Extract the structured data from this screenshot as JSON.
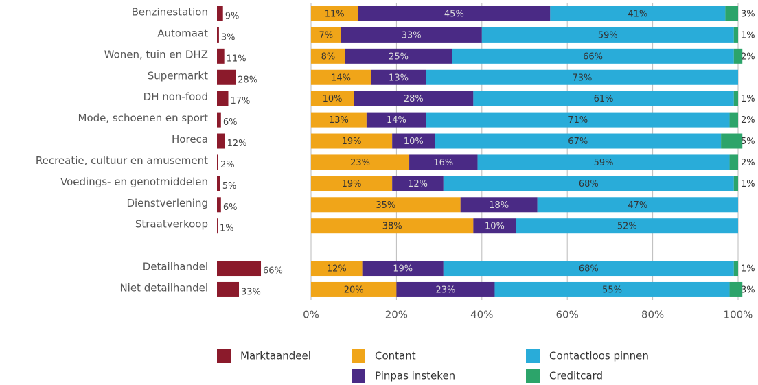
{
  "chart_data": [
    {
      "type": "bar",
      "categories": [
        "Benzinestation",
        "Automaat",
        "Wonen, tuin en DHZ",
        "Supermarkt",
        "DH non-food",
        "Mode, schoenen en sport",
        "Horeca",
        "Recreatie, cultuur en amusement",
        "Voedings- en genotmiddelen",
        "Dienstverlening",
        "Straatverkoop",
        null,
        "Detailhandel",
        "Niet detailhandel"
      ],
      "series": [
        {
          "name": "Marktaandeel",
          "color": "#8b1a2b",
          "values": [
            9,
            3,
            11,
            28,
            17,
            6,
            12,
            2,
            5,
            6,
            1,
            null,
            66,
            33
          ],
          "value_labels": [
            "9%",
            "3%",
            "11%",
            "28%",
            "17%",
            "6%",
            "12%",
            "2%",
            "5%",
            "6%",
            "1%",
            null,
            "66%",
            "33%"
          ]
        }
      ]
    },
    {
      "type": "stacked_bar",
      "xlim": [
        0,
        100
      ],
      "xticks": [
        {
          "value": 0,
          "label": "0%"
        },
        {
          "value": 20,
          "label": "20%"
        },
        {
          "value": 40,
          "label": "40%"
        },
        {
          "value": 60,
          "label": "60%"
        },
        {
          "value": 80,
          "label": "80%"
        },
        {
          "value": 100,
          "label": "100%"
        }
      ],
      "grid": true,
      "series": [
        {
          "name": "Contant",
          "color": "#f0a519",
          "values": [
            11,
            7,
            8,
            14,
            10,
            13,
            19,
            23,
            19,
            35,
            38,
            null,
            12,
            20
          ],
          "value_labels": [
            "11%",
            "7%",
            "8%",
            "14%",
            "10%",
            "13%",
            "19%",
            "23%",
            "19%",
            "35%",
            "38%",
            null,
            "12%",
            "20%"
          ]
        },
        {
          "name": "Pinpas insteken",
          "color": "#4a2a85",
          "values": [
            45,
            33,
            25,
            13,
            28,
            14,
            10,
            16,
            12,
            18,
            10,
            null,
            19,
            23
          ],
          "value_labels": [
            "45%",
            "33%",
            "25%",
            "13%",
            "28%",
            "14%",
            "10%",
            "16%",
            "12%",
            "18%",
            "10%",
            null,
            "19%",
            "23%"
          ]
        },
        {
          "name": "Contactloos pinnen",
          "color": "#29acd9",
          "values": [
            41,
            59,
            66,
            73,
            61,
            71,
            67,
            59,
            68,
            47,
            52,
            null,
            68,
            55
          ],
          "value_labels": [
            "41%",
            "59%",
            "66%",
            "73%",
            "61%",
            "71%",
            "67%",
            "59%",
            "68%",
            "47%",
            "52%",
            null,
            "68%",
            "55%"
          ]
        },
        {
          "name": "Creditcard",
          "color": "#2ca46a",
          "values": [
            3,
            1,
            2,
            null,
            1,
            2,
            5,
            2,
            1,
            null,
            null,
            null,
            1,
            3
          ],
          "value_labels": [
            "3%",
            "1%",
            "2%",
            null,
            "1%",
            "2%",
            "5%",
            "2%",
            "1%",
            null,
            null,
            null,
            "1%",
            "3%"
          ]
        }
      ]
    }
  ]
}
